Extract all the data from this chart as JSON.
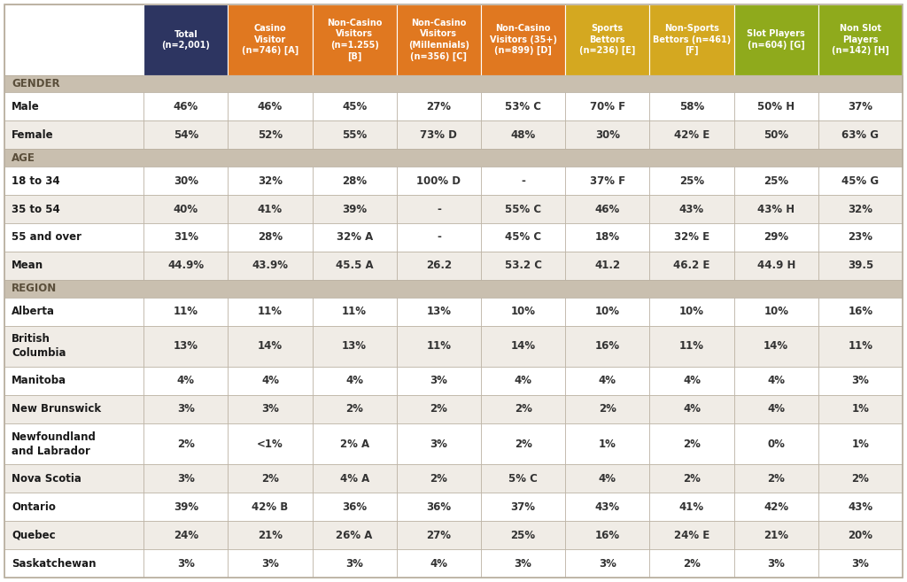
{
  "header_cols": [
    {
      "text": "Total\n(n=2,001)",
      "color": "#2d3561",
      "text_color": "#ffffff"
    },
    {
      "text": "Casino\nVisitor\n(n=746) [A]",
      "color": "#e07820",
      "text_color": "#ffffff"
    },
    {
      "text": "Non-Casino\nVisitors\n(n=1.255)\n[B]",
      "color": "#e07820",
      "text_color": "#ffffff"
    },
    {
      "text": "Non-Casino\nVisitors\n(Millennials)\n(n=356) [C]",
      "color": "#e07820",
      "text_color": "#ffffff"
    },
    {
      "text": "Non-Casino\nVisitors (35+)\n(n=899) [D]",
      "color": "#e07820",
      "text_color": "#ffffff"
    },
    {
      "text": "Sports\nBettors\n(n=236) [E]",
      "color": "#d4a820",
      "text_color": "#ffffff"
    },
    {
      "text": "Non-Sports\nBettors (n=461)\n[F]",
      "color": "#d4a820",
      "text_color": "#ffffff"
    },
    {
      "text": "Slot Players\n(n=604) [G]",
      "color": "#8faa1c",
      "text_color": "#ffffff"
    },
    {
      "text": "Non Slot\nPlayers\n(n=142) [H]",
      "color": "#8faa1c",
      "text_color": "#ffffff"
    }
  ],
  "rows": [
    {
      "label": "GENDER",
      "is_section": true,
      "values": [
        "",
        "",
        "",
        "",
        "",
        "",
        "",
        "",
        ""
      ]
    },
    {
      "label": "Male",
      "is_section": false,
      "values": [
        "46%",
        "46%",
        "45%",
        "27%",
        "53% C",
        "70% F",
        "58%",
        "50% H",
        "37%"
      ]
    },
    {
      "label": "Female",
      "is_section": false,
      "values": [
        "54%",
        "52%",
        "55%",
        "73% D",
        "48%",
        "30%",
        "42% E",
        "50%",
        "63% G"
      ]
    },
    {
      "label": "AGE",
      "is_section": true,
      "values": [
        "",
        "",
        "",
        "",
        "",
        "",
        "",
        "",
        ""
      ]
    },
    {
      "label": "18 to 34",
      "is_section": false,
      "values": [
        "30%",
        "32%",
        "28%",
        "100% D",
        "-",
        "37% F",
        "25%",
        "25%",
        "45% G"
      ]
    },
    {
      "label": "35 to 54",
      "is_section": false,
      "values": [
        "40%",
        "41%",
        "39%",
        "-",
        "55% C",
        "46%",
        "43%",
        "43% H",
        "32%"
      ]
    },
    {
      "label": "55 and over",
      "is_section": false,
      "values": [
        "31%",
        "28%",
        "32% A",
        "-",
        "45% C",
        "18%",
        "32% E",
        "29%",
        "23%"
      ]
    },
    {
      "label": "Mean",
      "is_section": false,
      "values": [
        "44.9%",
        "43.9%",
        "45.5 A",
        "26.2",
        "53.2 C",
        "41.2",
        "46.2 E",
        "44.9 H",
        "39.5"
      ]
    },
    {
      "label": "REGION",
      "is_section": true,
      "values": [
        "",
        "",
        "",
        "",
        "",
        "",
        "",
        "",
        ""
      ]
    },
    {
      "label": "Alberta",
      "is_section": false,
      "values": [
        "11%",
        "11%",
        "11%",
        "13%",
        "10%",
        "10%",
        "10%",
        "10%",
        "16%"
      ]
    },
    {
      "label": "British\nColumbia",
      "is_section": false,
      "values": [
        "13%",
        "14%",
        "13%",
        "11%",
        "14%",
        "16%",
        "11%",
        "14%",
        "11%"
      ]
    },
    {
      "label": "Manitoba",
      "is_section": false,
      "values": [
        "4%",
        "4%",
        "4%",
        "3%",
        "4%",
        "4%",
        "4%",
        "4%",
        "3%"
      ]
    },
    {
      "label": "New Brunswick",
      "is_section": false,
      "values": [
        "3%",
        "3%",
        "2%",
        "2%",
        "2%",
        "2%",
        "4%",
        "4%",
        "1%"
      ]
    },
    {
      "label": "Newfoundland\nand Labrador",
      "is_section": false,
      "values": [
        "2%",
        "<1%",
        "2% A",
        "3%",
        "2%",
        "1%",
        "2%",
        "0%",
        "1%"
      ]
    },
    {
      "label": "Nova Scotia",
      "is_section": false,
      "values": [
        "3%",
        "2%",
        "4% A",
        "2%",
        "5% C",
        "4%",
        "2%",
        "2%",
        "2%"
      ]
    },
    {
      "label": "Ontario",
      "is_section": false,
      "values": [
        "39%",
        "42% B",
        "36%",
        "36%",
        "37%",
        "43%",
        "41%",
        "42%",
        "43%"
      ]
    },
    {
      "label": "Quebec",
      "is_section": false,
      "values": [
        "24%",
        "21%",
        "26% A",
        "27%",
        "25%",
        "16%",
        "24% E",
        "21%",
        "20%"
      ]
    },
    {
      "label": "Saskatchewan",
      "is_section": false,
      "values": [
        "3%",
        "3%",
        "3%",
        "4%",
        "3%",
        "3%",
        "2%",
        "3%",
        "3%"
      ]
    }
  ],
  "bg_white": "#ffffff",
  "bg_section": "#c9bfaf",
  "bg_row_even": "#f0ece6",
  "border_color": "#b8ae9e",
  "section_text_color": "#5a4e3a",
  "data_text_color": "#333333",
  "label_text_color": "#1a1a1a",
  "header_font_size": 7.0,
  "data_font_size": 8.5,
  "section_font_size": 8.5
}
